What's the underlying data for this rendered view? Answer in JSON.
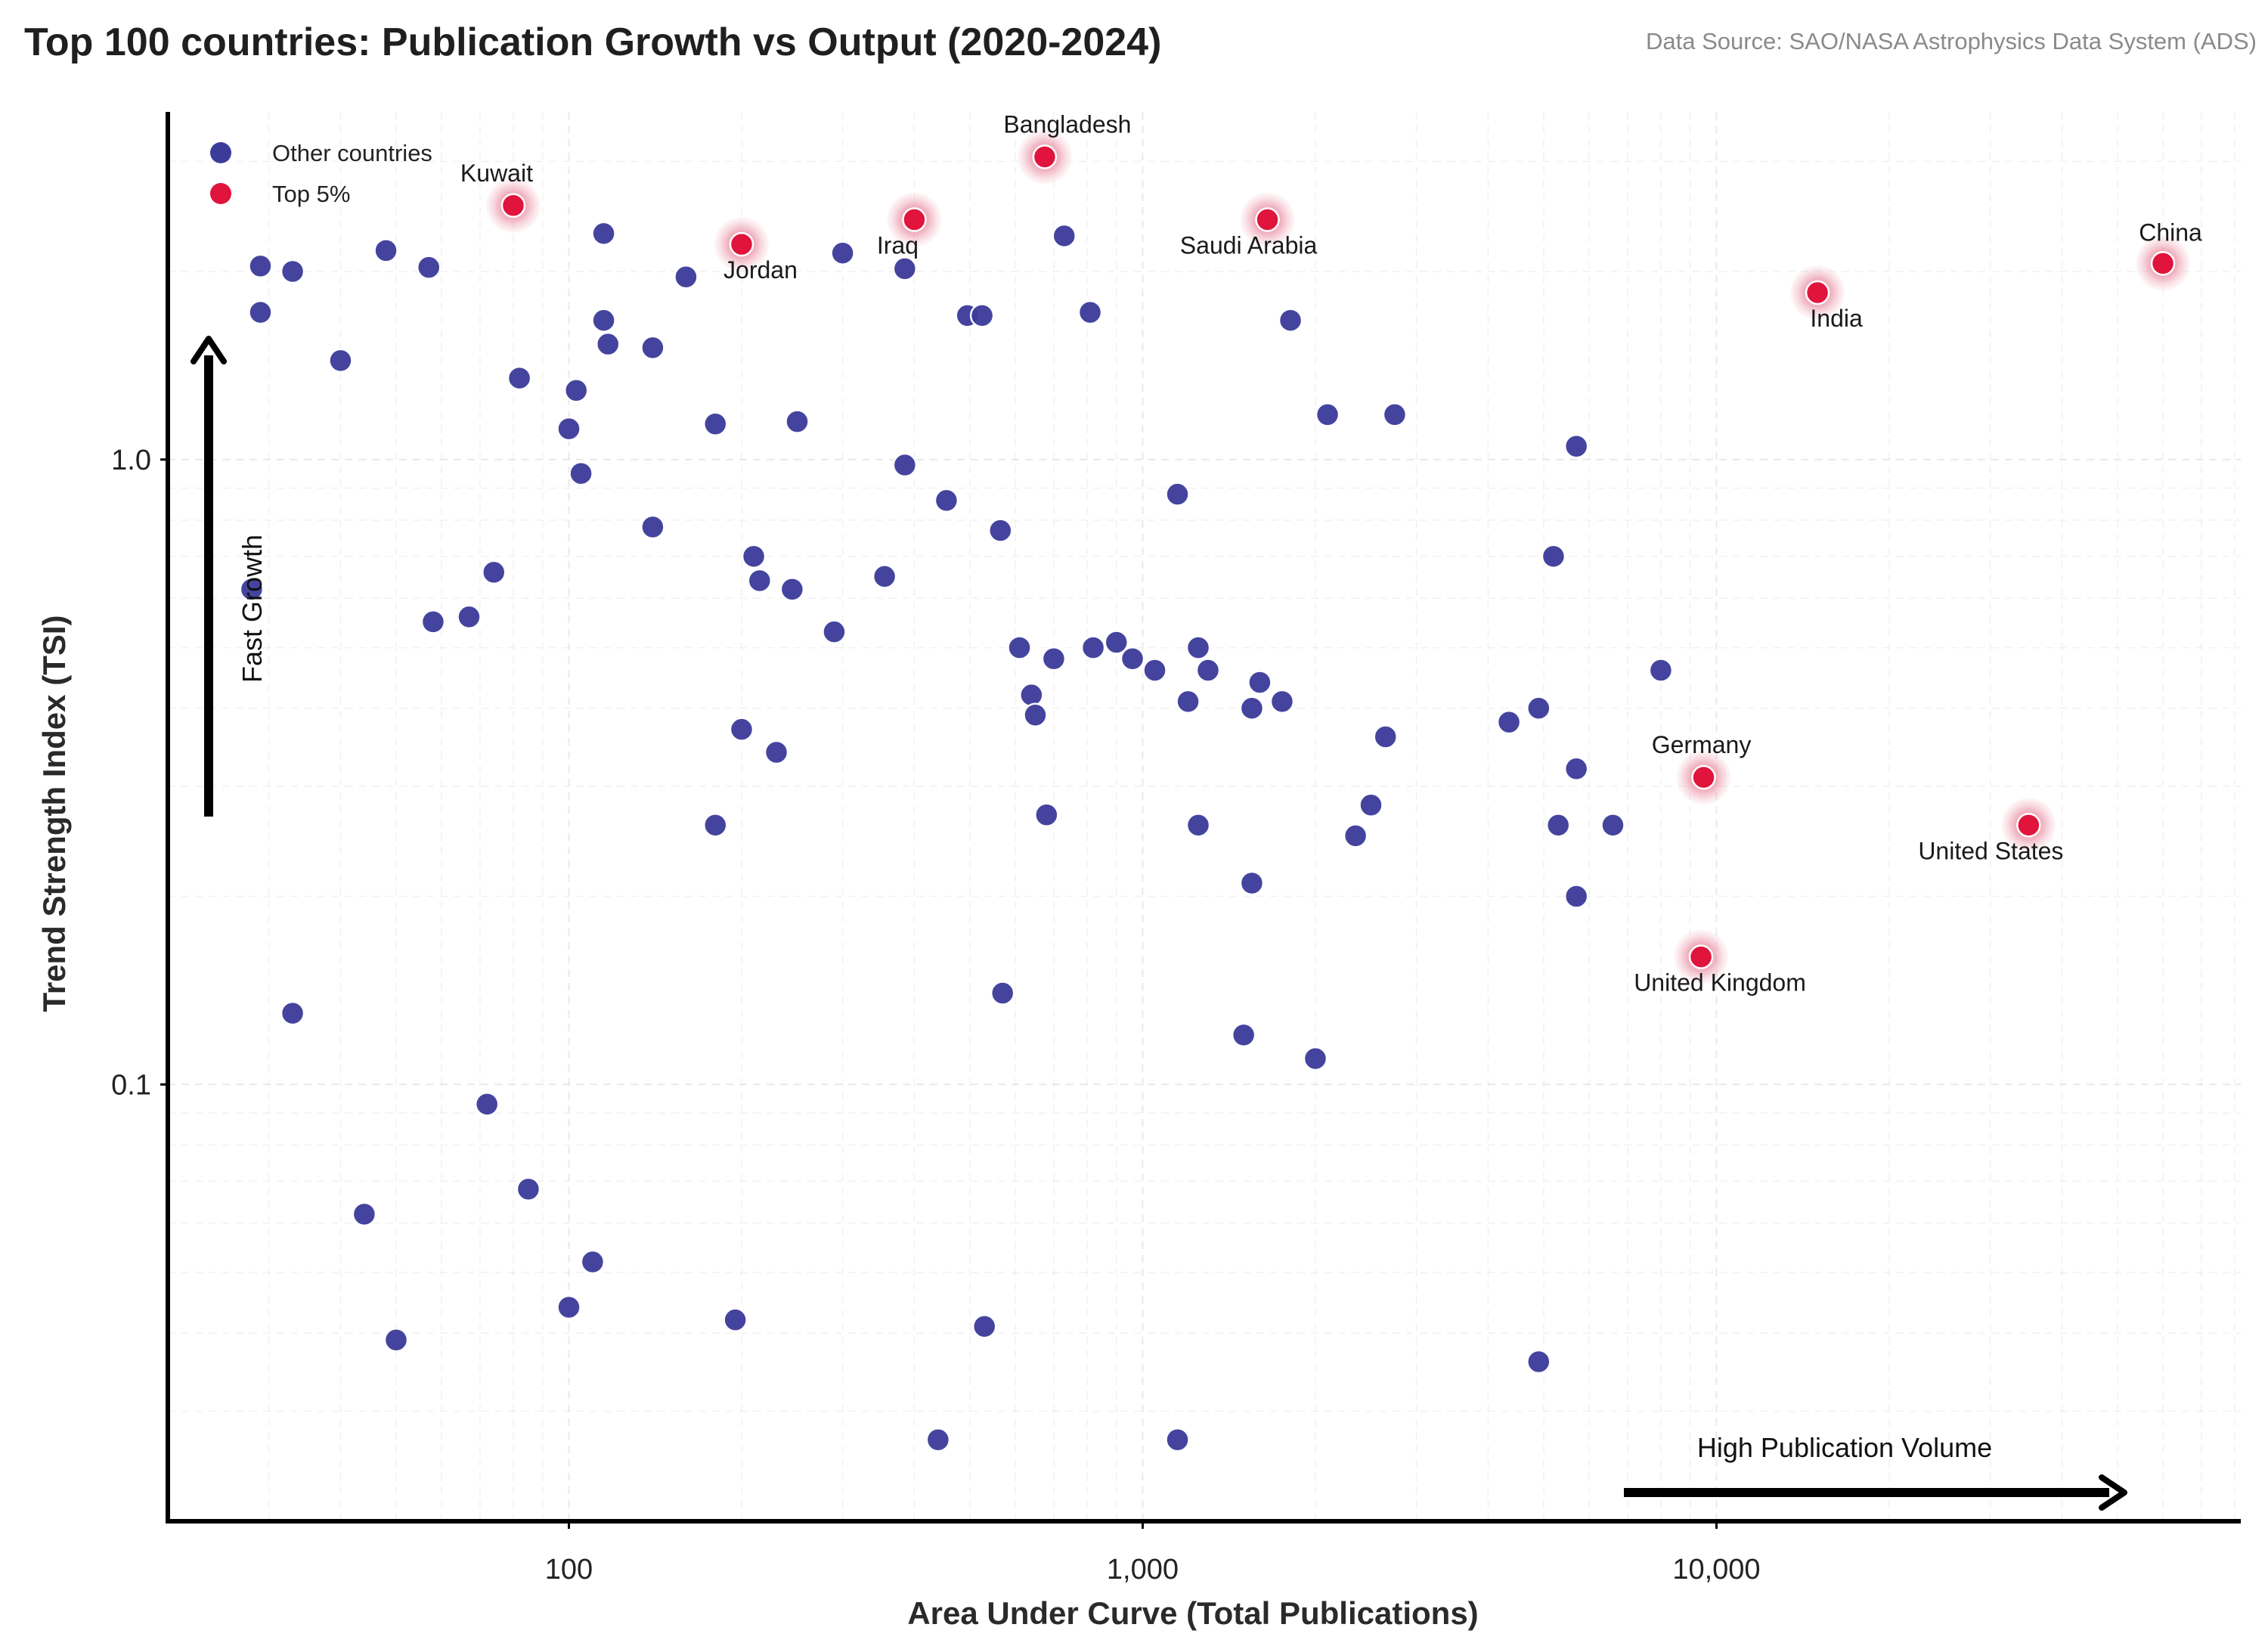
{
  "chart_data": {
    "type": "scatter",
    "title": "Top 100 countries: Publication Growth vs Output  (2020-2024)",
    "source": "Data Source: SAO/NASA Astrophysics Data System (ADS)",
    "xlabel": "Area Under Curve (Total Publications)",
    "ylabel": "Trend Strength Index (TSI)",
    "xscale": "log",
    "yscale": "log",
    "xlim": [
      20,
      82000
    ],
    "ylim": [
      0.02,
      3.6
    ],
    "xticks": [
      {
        "value": 100,
        "label": "100"
      },
      {
        "value": 1000,
        "label": "1,000"
      },
      {
        "value": 10000,
        "label": "10,000"
      }
    ],
    "yticks": [
      {
        "value": 0.1,
        "label": "0.1"
      },
      {
        "value": 1.0,
        "label": "1.0"
      }
    ],
    "grid": true,
    "legend": {
      "position": "top-left",
      "entries": [
        "Other countries",
        "Top 5%"
      ]
    },
    "colors": {
      "other": "#3b3b9a",
      "top": "#e0143c",
      "halo": "#e07a90"
    },
    "annotations": {
      "fast_growth": "Fast Growth",
      "high_volume": "High Publication Volume"
    },
    "series": [
      {
        "name": "Top 5%",
        "points": [
          {
            "x": 80,
            "y": 2.55,
            "label": "Kuwait"
          },
          {
            "x": 200,
            "y": 2.21,
            "label": "Jordan"
          },
          {
            "x": 400,
            "y": 2.42,
            "label": "Iraq"
          },
          {
            "x": 675,
            "y": 3.05,
            "label": "Bangladesh"
          },
          {
            "x": 1650,
            "y": 2.42,
            "label": "Saudi Arabia"
          },
          {
            "x": 60000,
            "y": 2.06,
            "label": "China"
          },
          {
            "x": 15000,
            "y": 1.85,
            "label": "India"
          },
          {
            "x": 9500,
            "y": 0.31,
            "label": "Germany"
          },
          {
            "x": 35000,
            "y": 0.26,
            "label": "United States"
          },
          {
            "x": 9400,
            "y": 0.16,
            "label": "United Kingdom"
          }
        ]
      },
      {
        "name": "Other countries",
        "points": [
          {
            "x": 29,
            "y": 2.04
          },
          {
            "x": 33,
            "y": 2.0
          },
          {
            "x": 29,
            "y": 1.72
          },
          {
            "x": 48,
            "y": 2.16
          },
          {
            "x": 57,
            "y": 2.03
          },
          {
            "x": 40,
            "y": 1.44
          },
          {
            "x": 115,
            "y": 2.3
          },
          {
            "x": 115,
            "y": 1.67
          },
          {
            "x": 117,
            "y": 1.53
          },
          {
            "x": 140,
            "y": 1.51
          },
          {
            "x": 160,
            "y": 1.96
          },
          {
            "x": 82,
            "y": 1.35
          },
          {
            "x": 103,
            "y": 1.29
          },
          {
            "x": 100,
            "y": 1.12
          },
          {
            "x": 105,
            "y": 0.95
          },
          {
            "x": 180,
            "y": 1.14
          },
          {
            "x": 250,
            "y": 1.15
          },
          {
            "x": 300,
            "y": 2.14
          },
          {
            "x": 385,
            "y": 2.02
          },
          {
            "x": 495,
            "y": 1.7
          },
          {
            "x": 525,
            "y": 1.7
          },
          {
            "x": 730,
            "y": 2.28
          },
          {
            "x": 810,
            "y": 1.72
          },
          {
            "x": 1810,
            "y": 1.67
          },
          {
            "x": 2100,
            "y": 1.18
          },
          {
            "x": 2750,
            "y": 1.18
          },
          {
            "x": 5700,
            "y": 1.05
          },
          {
            "x": 385,
            "y": 0.98
          },
          {
            "x": 455,
            "y": 0.86
          },
          {
            "x": 565,
            "y": 0.77
          },
          {
            "x": 1150,
            "y": 0.88
          },
          {
            "x": 140,
            "y": 0.78
          },
          {
            "x": 74,
            "y": 0.66
          },
          {
            "x": 28,
            "y": 0.62
          },
          {
            "x": 58,
            "y": 0.55
          },
          {
            "x": 67,
            "y": 0.56
          },
          {
            "x": 210,
            "y": 0.7
          },
          {
            "x": 215,
            "y": 0.64
          },
          {
            "x": 245,
            "y": 0.62
          },
          {
            "x": 355,
            "y": 0.65
          },
          {
            "x": 290,
            "y": 0.53
          },
          {
            "x": 5200,
            "y": 0.7
          },
          {
            "x": 610,
            "y": 0.5
          },
          {
            "x": 700,
            "y": 0.48
          },
          {
            "x": 820,
            "y": 0.5
          },
          {
            "x": 900,
            "y": 0.51
          },
          {
            "x": 960,
            "y": 0.48
          },
          {
            "x": 1050,
            "y": 0.46
          },
          {
            "x": 1250,
            "y": 0.5
          },
          {
            "x": 1300,
            "y": 0.46
          },
          {
            "x": 640,
            "y": 0.42
          },
          {
            "x": 650,
            "y": 0.39
          },
          {
            "x": 1200,
            "y": 0.41
          },
          {
            "x": 1550,
            "y": 0.4
          },
          {
            "x": 1600,
            "y": 0.44
          },
          {
            "x": 1750,
            "y": 0.41
          },
          {
            "x": 2650,
            "y": 0.36
          },
          {
            "x": 4350,
            "y": 0.38
          },
          {
            "x": 4900,
            "y": 0.4
          },
          {
            "x": 8000,
            "y": 0.46
          },
          {
            "x": 200,
            "y": 0.37
          },
          {
            "x": 230,
            "y": 0.34
          },
          {
            "x": 5700,
            "y": 0.32
          },
          {
            "x": 2500,
            "y": 0.28
          },
          {
            "x": 2350,
            "y": 0.25
          },
          {
            "x": 180,
            "y": 0.26
          },
          {
            "x": 680,
            "y": 0.27
          },
          {
            "x": 1250,
            "y": 0.26
          },
          {
            "x": 5300,
            "y": 0.26
          },
          {
            "x": 6600,
            "y": 0.26
          },
          {
            "x": 1550,
            "y": 0.21
          },
          {
            "x": 5700,
            "y": 0.2
          },
          {
            "x": 33,
            "y": 0.13
          },
          {
            "x": 570,
            "y": 0.14
          },
          {
            "x": 1500,
            "y": 0.12
          },
          {
            "x": 2000,
            "y": 0.11
          },
          {
            "x": 72,
            "y": 0.093
          },
          {
            "x": 85,
            "y": 0.068
          },
          {
            "x": 44,
            "y": 0.062
          },
          {
            "x": 110,
            "y": 0.052
          },
          {
            "x": 100,
            "y": 0.044
          },
          {
            "x": 195,
            "y": 0.042
          },
          {
            "x": 530,
            "y": 0.041
          },
          {
            "x": 50,
            "y": 0.039
          },
          {
            "x": 4900,
            "y": 0.036
          },
          {
            "x": 440,
            "y": 0.027
          },
          {
            "x": 1150,
            "y": 0.027
          }
        ]
      }
    ]
  }
}
